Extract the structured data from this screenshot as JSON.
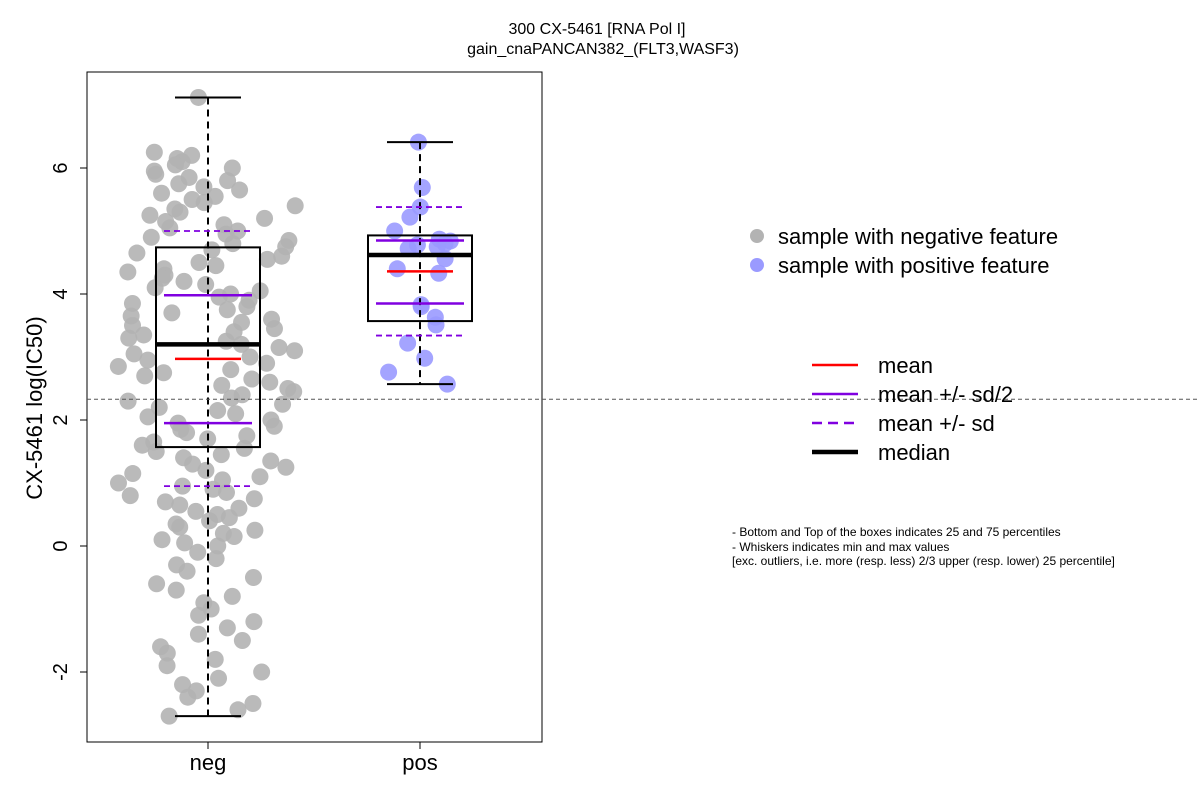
{
  "chart_data": {
    "type": "box",
    "title": "300 CX-5461 [RNA Pol I]",
    "subtitle": "gain_cnaPANCAN382_(FLT3,WASF3)",
    "xlabel": "",
    "ylabel": "CX-5461 log(IC50)",
    "categories": [
      "neg",
      "pos"
    ],
    "ylim": [
      -3.0,
      7.5
    ],
    "yticks": [
      -2,
      0,
      2,
      4,
      6
    ],
    "reference_line_y": 2.33,
    "colors": {
      "neg_points": "#b3b3b3",
      "pos_points": "#9a9aff",
      "mean": "#ff0000",
      "sd": "#8000e0",
      "median": "#000000"
    },
    "series": [
      {
        "category": "neg",
        "min": -2.7,
        "q1": 1.57,
        "median": 3.2,
        "q3": 4.74,
        "max": 7.12,
        "mean": 2.97,
        "mean_plus_half_sd": 3.98,
        "mean_minus_half_sd": 1.95,
        "mean_plus_sd": 5.0,
        "mean_minus_sd": 0.95,
        "points": [
          7.12,
          6.25,
          6.2,
          6.15,
          6.1,
          6.05,
          6.0,
          5.95,
          5.9,
          5.85,
          5.8,
          5.75,
          5.7,
          5.65,
          5.6,
          5.55,
          5.5,
          5.45,
          5.4,
          5.35,
          5.3,
          5.25,
          5.2,
          5.15,
          5.1,
          5.05,
          5.0,
          4.95,
          4.9,
          4.85,
          4.8,
          4.75,
          4.7,
          4.65,
          4.6,
          4.55,
          4.5,
          4.45,
          4.4,
          4.35,
          4.3,
          4.25,
          4.2,
          4.15,
          4.1,
          4.05,
          4.0,
          3.95,
          3.9,
          3.85,
          3.8,
          3.75,
          3.7,
          3.65,
          3.6,
          3.55,
          3.5,
          3.45,
          3.4,
          3.35,
          3.3,
          3.25,
          3.2,
          3.15,
          3.1,
          3.05,
          3.0,
          2.95,
          2.9,
          2.85,
          2.8,
          2.75,
          2.7,
          2.65,
          2.6,
          2.55,
          2.5,
          2.45,
          2.4,
          2.35,
          2.3,
          2.25,
          2.2,
          2.15,
          2.1,
          2.05,
          2.0,
          1.95,
          1.9,
          1.85,
          1.8,
          1.75,
          1.7,
          1.65,
          1.6,
          1.55,
          1.5,
          1.45,
          1.4,
          1.35,
          1.3,
          1.25,
          1.2,
          1.15,
          1.1,
          1.05,
          1.0,
          0.95,
          0.9,
          0.85,
          0.8,
          0.75,
          0.7,
          0.65,
          0.6,
          0.55,
          0.5,
          0.45,
          0.4,
          0.35,
          0.3,
          0.25,
          0.2,
          0.15,
          0.1,
          0.05,
          0.0,
          -0.1,
          -0.2,
          -0.3,
          -0.4,
          -0.5,
          -0.6,
          -0.7,
          -0.8,
          -0.9,
          -1.0,
          -1.1,
          -1.2,
          -1.3,
          -1.4,
          -1.5,
          -1.6,
          -1.7,
          -1.8,
          -1.9,
          -2.0,
          -2.1,
          -2.2,
          -2.3,
          -2.4,
          -2.5,
          -2.6,
          -2.7
        ]
      },
      {
        "category": "pos",
        "min": 2.57,
        "q1": 3.57,
        "median": 4.62,
        "q3": 4.93,
        "max": 6.41,
        "mean": 4.36,
        "mean_plus_half_sd": 4.85,
        "mean_minus_half_sd": 3.85,
        "mean_plus_sd": 5.38,
        "mean_minus_sd": 3.34,
        "points": [
          6.41,
          5.69,
          5.38,
          5.22,
          5.0,
          4.87,
          4.84,
          4.8,
          4.78,
          4.75,
          4.72,
          4.56,
          4.4,
          4.33,
          3.83,
          3.8,
          3.63,
          3.51,
          3.22,
          2.98,
          2.76,
          2.57
        ]
      }
    ],
    "legend": {
      "points": [
        {
          "label": "sample with negative feature",
          "color": "#b3b3b3"
        },
        {
          "label": "sample with positive feature",
          "color": "#9a9aff"
        }
      ],
      "lines": [
        {
          "label": "mean",
          "color": "#ff0000",
          "style": "solid",
          "weight": "normal"
        },
        {
          "label": "mean +/- sd/2",
          "color": "#8000e0",
          "style": "solid",
          "weight": "normal"
        },
        {
          "label": "mean +/- sd",
          "color": "#8000e0",
          "style": "dashed",
          "weight": "normal"
        },
        {
          "label": "median",
          "color": "#000000",
          "style": "solid",
          "weight": "bold"
        }
      ]
    },
    "notes": [
      "- Bottom and Top of the boxes indicates 25 and 75 percentiles",
      "- Whiskers indicates min and max values",
      "[exc. outliers, i.e. more (resp. less) 2/3 upper (resp. lower) 25 percentile]"
    ]
  }
}
